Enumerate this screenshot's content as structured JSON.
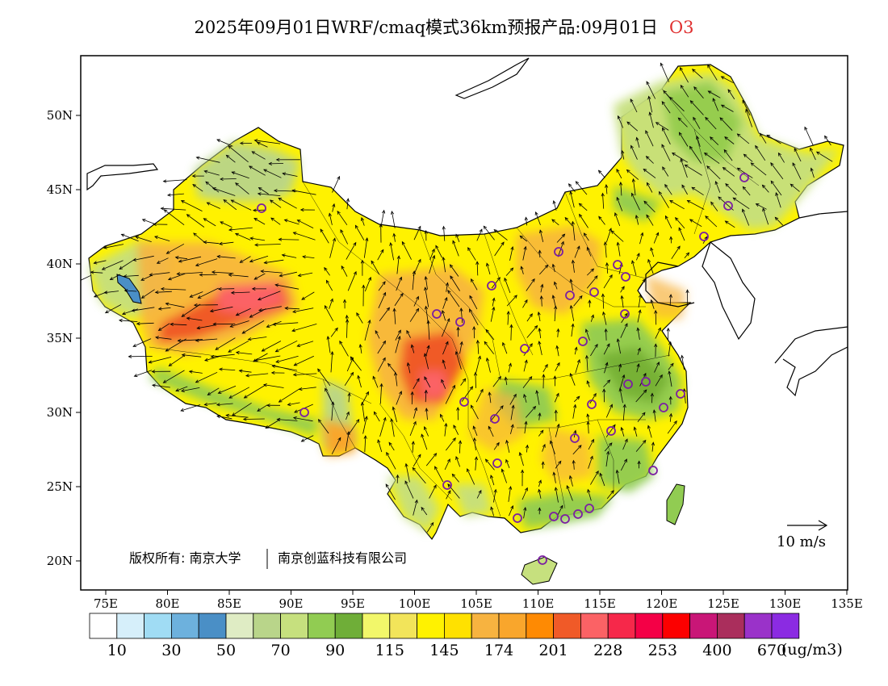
{
  "title": {
    "main": "2025年09月01日WRF/cmaq模式36km预报产品:09月01日",
    "species": "O3"
  },
  "map": {
    "lon_ticks": [
      "75E",
      "80E",
      "85E",
      "90E",
      "95E",
      "100E",
      "105E",
      "110E",
      "115E",
      "120E",
      "125E",
      "130E",
      "135E"
    ],
    "lat_ticks": [
      "50N",
      "45N",
      "40N",
      "35N",
      "30N",
      "25N",
      "20N"
    ],
    "copyright_left": "版权所有: 南京大学",
    "copyright_right": "南京创蓝科技有限公司",
    "wind_reference_label": "10 m/s"
  },
  "colorbar": {
    "colors": [
      "#ffffff",
      "#d6effa",
      "#a0dcf4",
      "#6db1dd",
      "#4a8fc6",
      "#dfecc4",
      "#b9d58a",
      "#c6e07e",
      "#91cc52",
      "#6fae38",
      "#f2f76a",
      "#f2e45a",
      "#fff200",
      "#ffe100",
      "#f7b340",
      "#f9a62c",
      "#fe8a03",
      "#f05a28",
      "#fb6265",
      "#f6284a",
      "#f40046",
      "#fc0000",
      "#c91677",
      "#aa2e5c",
      "#9a32c9",
      "#8b2be2"
    ],
    "labels": [
      "10",
      "30",
      "50",
      "70",
      "90",
      "115",
      "145",
      "174",
      "201",
      "228",
      "253",
      "400",
      "670"
    ],
    "unit": "(ug/m3)"
  },
  "stations": [
    "o",
    "o",
    "o",
    "o",
    "o",
    "o",
    "o",
    "o",
    "o",
    "o",
    "o",
    "o",
    "o",
    "o",
    "o",
    "o",
    "o",
    "o",
    "o",
    "o",
    "o",
    "o",
    "o",
    "o",
    "o",
    "o",
    "o",
    "o",
    "o",
    "o",
    "o",
    "o",
    "o",
    "o"
  ]
}
